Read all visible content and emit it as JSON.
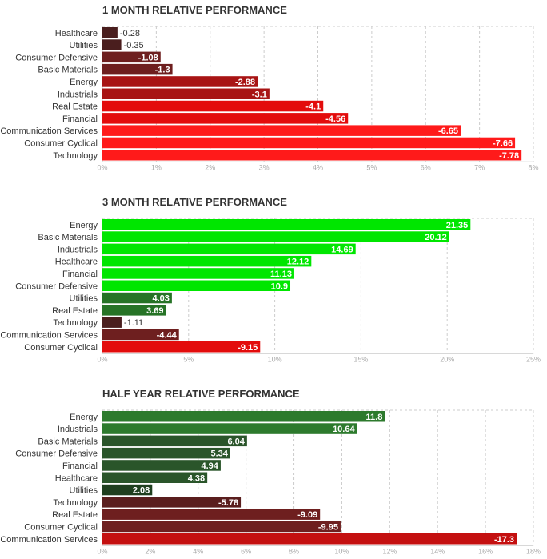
{
  "chart_data": [
    {
      "type": "bar",
      "orientation": "horizontal",
      "title": "1 MONTH RELATIVE PERFORMANCE",
      "categories": [
        "Healthcare",
        "Utilities",
        "Consumer Defensive",
        "Basic Materials",
        "Energy",
        "Industrials",
        "Real Estate",
        "Financial",
        "Communication Services",
        "Consumer Cyclical",
        "Technology"
      ],
      "values": [
        -0.28,
        -0.35,
        -1.08,
        -1.3,
        -2.88,
        -3.1,
        -4.1,
        -4.56,
        -6.65,
        -7.66,
        -7.78
      ],
      "value_labels": [
        "-0.28",
        "-0.35",
        "-1.08",
        "-1.3",
        "-2.88",
        "-3.1",
        "-4.1",
        "-4.56",
        "-6.65",
        "-7.66",
        "-7.78"
      ],
      "colors": [
        "#4a1e1e",
        "#4a1e1e",
        "#6e1f1f",
        "#6e1f1f",
        "#a81414",
        "#a81414",
        "#e30c0c",
        "#e30c0c",
        "#ff1a1a",
        "#ff1a1a",
        "#ff1a1a"
      ],
      "xlim": [
        0,
        8
      ],
      "xticks": [
        "0%",
        "1%",
        "2%",
        "3%",
        "4%",
        "5%",
        "6%",
        "7%",
        "8%"
      ],
      "grid": true,
      "xlabel": "",
      "ylabel": ""
    },
    {
      "type": "bar",
      "orientation": "horizontal",
      "title": "3 MONTH RELATIVE PERFORMANCE",
      "categories": [
        "Energy",
        "Basic Materials",
        "Industrials",
        "Healthcare",
        "Financial",
        "Consumer Defensive",
        "Utilities",
        "Real Estate",
        "Technology",
        "Communication Services",
        "Consumer Cyclical"
      ],
      "values": [
        21.35,
        20.12,
        14.69,
        12.12,
        11.13,
        10.9,
        4.03,
        3.69,
        -1.11,
        -4.44,
        -9.15
      ],
      "value_labels": [
        "21.35",
        "20.12",
        "14.69",
        "12.12",
        "11.13",
        "10.9",
        "4.03",
        "3.69",
        "-1.11",
        "-4.44",
        "-9.15"
      ],
      "colors": [
        "#00e600",
        "#00e600",
        "#00e600",
        "#00e600",
        "#00e600",
        "#00e600",
        "#267326",
        "#267326",
        "#4a1e1e",
        "#6e1f1f",
        "#e30c0c"
      ],
      "xlim": [
        0,
        25
      ],
      "xticks": [
        "0%",
        "5%",
        "10%",
        "15%",
        "20%",
        "25%"
      ],
      "grid": true,
      "xlabel": "",
      "ylabel": ""
    },
    {
      "type": "bar",
      "orientation": "horizontal",
      "title": "HALF YEAR RELATIVE PERFORMANCE",
      "categories": [
        "Energy",
        "Industrials",
        "Basic Materials",
        "Consumer Defensive",
        "Financial",
        "Healthcare",
        "Utilities",
        "Technology",
        "Real Estate",
        "Consumer Cyclical",
        "Communication Services"
      ],
      "values": [
        11.8,
        10.64,
        6.04,
        5.34,
        4.94,
        4.38,
        2.08,
        -5.78,
        -9.09,
        -9.95,
        -17.3
      ],
      "value_labels": [
        "11.8",
        "10.64",
        "6.04",
        "5.34",
        "4.94",
        "4.38",
        "2.08",
        "-5.78",
        "-9.09",
        "-9.95",
        "-17.3"
      ],
      "colors": [
        "#2d7a2d",
        "#2d7a2d",
        "#2a552a",
        "#2a552a",
        "#2a552a",
        "#2a552a",
        "#1f3f1f",
        "#5a1e1e",
        "#6e1f1f",
        "#6e1f1f",
        "#c41010"
      ],
      "xlim": [
        0,
        18
      ],
      "xticks": [
        "0%",
        "2%",
        "4%",
        "6%",
        "8%",
        "10%",
        "12%",
        "14%",
        "16%",
        "18%"
      ],
      "grid": true,
      "xlabel": "",
      "ylabel": ""
    }
  ]
}
